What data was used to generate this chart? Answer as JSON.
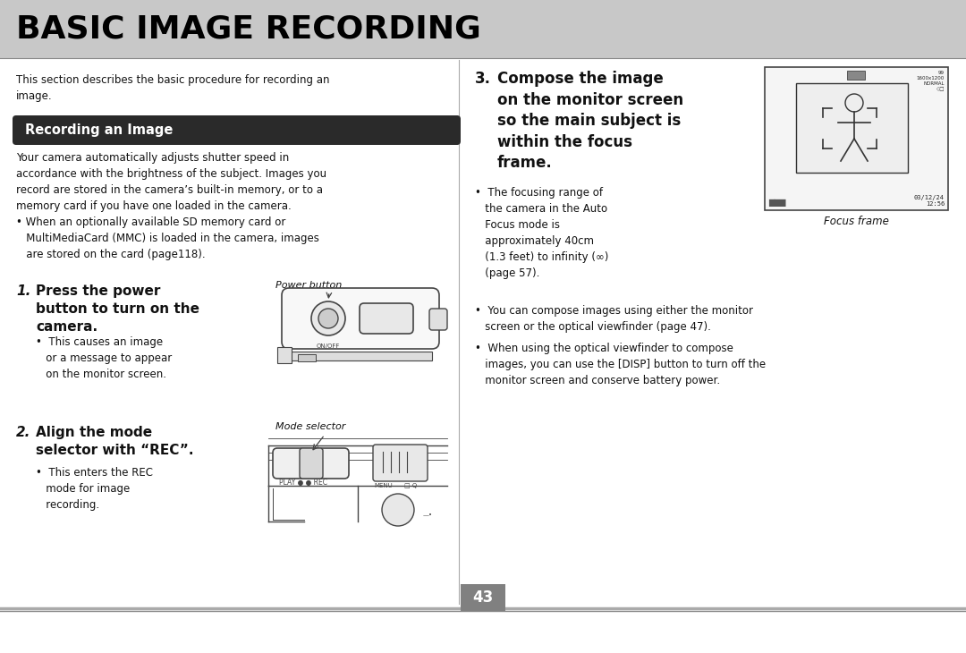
{
  "bg_color": "#ffffff",
  "header_bg": "#c8c8c8",
  "header_text": "BASIC IMAGE RECORDING",
  "header_text_color": "#000000",
  "header_font_size": 26,
  "section_bar_color": "#2a2a2a",
  "section_bar_text": "Recording an Image",
  "section_bar_text_color": "#ffffff",
  "page_number": "43",
  "page_num_bg": "#808080",
  "page_num_color": "#ffffff",
  "footer_line_color": "#999999",
  "divider_color": "#aaaaaa",
  "text_color": "#111111",
  "body_font_size": 8.5,
  "step_font_size": 11,
  "caption_font_size": 8,
  "intro_text": "This section describes the basic procedure for recording an\nimage.",
  "section_body_text": "Your camera automatically adjusts shutter speed in\naccordance with the brightness of the subject. Images you\nrecord are stored in the camera’s built-in memory, or to a\nmemory card if you have one loaded in the camera.\n• When an optionally available SD memory card or\n   MultiMediaCard (MMC) is loaded in the camera, images\n   are stored on the card (page118).",
  "step1_title_num": "1.",
  "step1_title_body": "Press the power\nbutton to turn on the\ncamera.",
  "step1_bullet": "•  This causes an image\n   or a message to appear\n   on the monitor screen.",
  "step1_caption": "Power button",
  "step2_title_num": "2.",
  "step2_title_body": "Align the mode\nselector with “REC”.",
  "step2_bullet": "•  This enters the REC\n   mode for image\n   recording.",
  "step2_caption": "Mode selector",
  "step3_num": "3.",
  "step3_body": "Compose the image\non the monitor screen\nso the main subject is\nwithin the focus\nframe.",
  "right_bullet1": "•  The focusing range of\n   the camera in the Auto\n   Focus mode is\n   approximately 40cm\n   (1.3 feet) to infinity (∞)\n   (page 57).",
  "right_bullet2": "•  You can compose images using either the monitor\n   screen or the optical viewfinder (page 47).",
  "right_bullet3": "•  When using the optical viewfinder to compose\n   images, you can use the [DISP] button to turn off the\n   monitor screen and conserve battery power.",
  "focus_frame_caption": "Focus frame",
  "line_color": "#444444"
}
